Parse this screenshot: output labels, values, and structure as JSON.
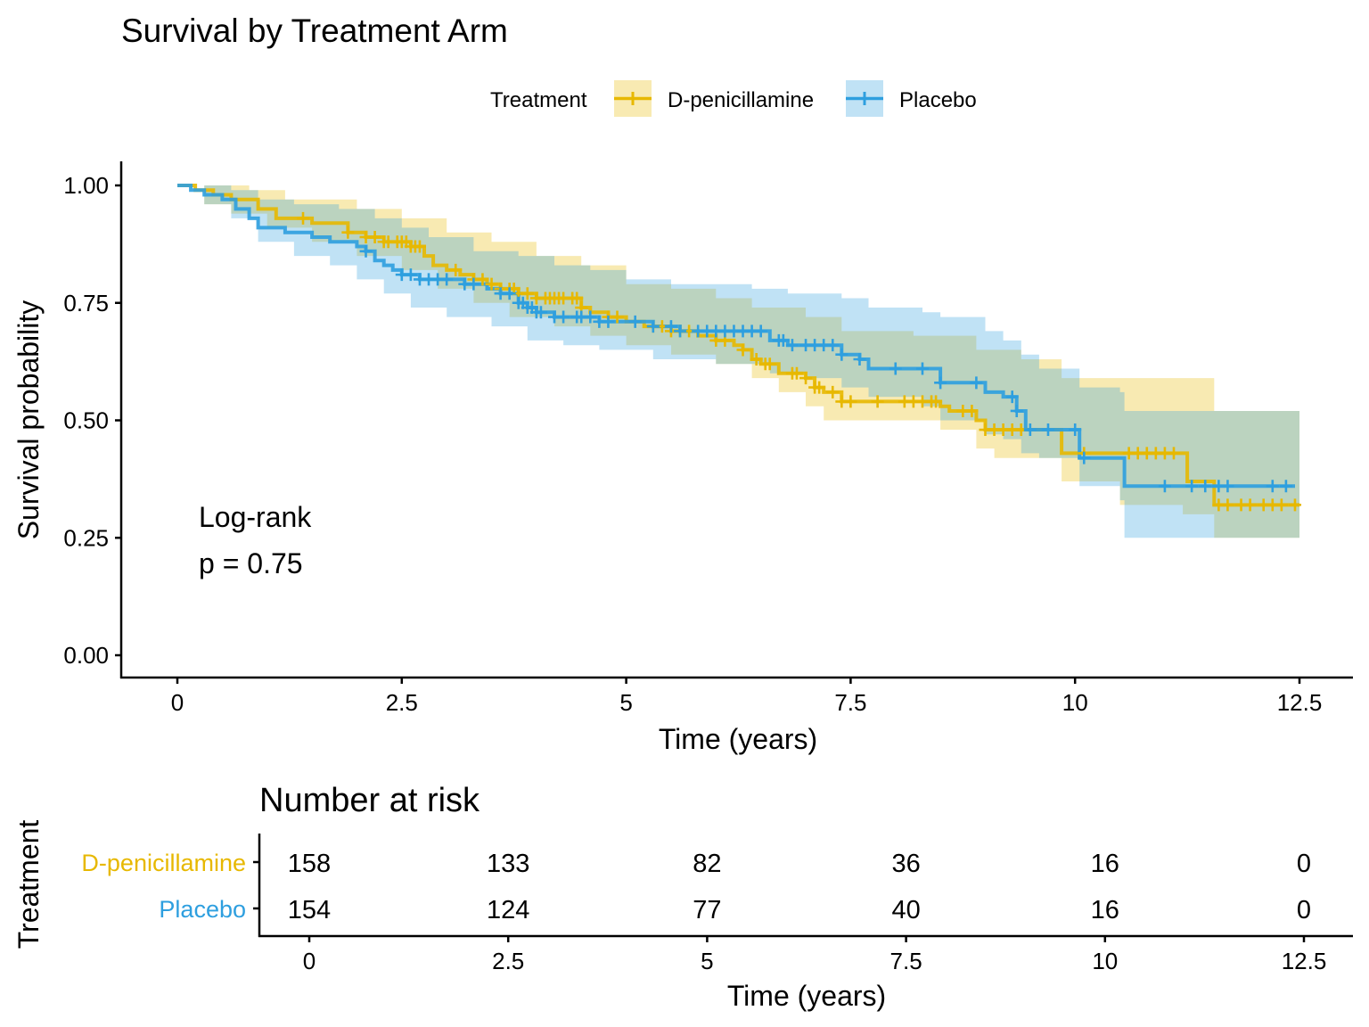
{
  "chart_data": {
    "type": "line",
    "title": "Survival by Treatment Arm",
    "xlabel": "Time (years)",
    "ylabel": "Survival probability",
    "xlim": [
      0,
      12.5
    ],
    "ylim": [
      0,
      1
    ],
    "x_ticks": [
      "0",
      "2.5",
      "5",
      "7.5",
      "10",
      "12.5"
    ],
    "y_ticks": [
      "0.00",
      "0.25",
      "0.50",
      "0.75",
      "1.00"
    ],
    "grid": false,
    "legend": {
      "title": "Treatment",
      "position": "top",
      "entries": [
        "D-penicillamine",
        "Placebo"
      ]
    },
    "annotation": {
      "line1": "Log-rank",
      "line2": "p = 0.75"
    },
    "series": [
      {
        "name": "D-penicillamine",
        "color": "#E7B800",
        "curve": [
          [
            0,
            1.0
          ],
          [
            0.2,
            0.99
          ],
          [
            0.4,
            0.98
          ],
          [
            0.6,
            0.97
          ],
          [
            0.9,
            0.95
          ],
          [
            1.1,
            0.93
          ],
          [
            1.5,
            0.92
          ],
          [
            1.9,
            0.9
          ],
          [
            2.1,
            0.89
          ],
          [
            2.3,
            0.88
          ],
          [
            2.6,
            0.87
          ],
          [
            2.75,
            0.85
          ],
          [
            2.85,
            0.83
          ],
          [
            3.0,
            0.82
          ],
          [
            3.15,
            0.81
          ],
          [
            3.3,
            0.8
          ],
          [
            3.45,
            0.79
          ],
          [
            3.6,
            0.78
          ],
          [
            3.8,
            0.77
          ],
          [
            4.0,
            0.76
          ],
          [
            4.3,
            0.76
          ],
          [
            4.5,
            0.74
          ],
          [
            4.6,
            0.73
          ],
          [
            4.8,
            0.72
          ],
          [
            5.0,
            0.71
          ],
          [
            5.2,
            0.7
          ],
          [
            5.5,
            0.69
          ],
          [
            5.8,
            0.68
          ],
          [
            6.0,
            0.67
          ],
          [
            6.2,
            0.66
          ],
          [
            6.3,
            0.65
          ],
          [
            6.4,
            0.63
          ],
          [
            6.5,
            0.62
          ],
          [
            6.7,
            0.6
          ],
          [
            7.0,
            0.59
          ],
          [
            7.1,
            0.57
          ],
          [
            7.2,
            0.56
          ],
          [
            7.4,
            0.54
          ],
          [
            8.2,
            0.54
          ],
          [
            8.5,
            0.53
          ],
          [
            8.6,
            0.52
          ],
          [
            8.9,
            0.5
          ],
          [
            9.0,
            0.48
          ],
          [
            9.4,
            0.48
          ],
          [
            9.8,
            0.48
          ],
          [
            9.85,
            0.43
          ],
          [
            11.2,
            0.43
          ],
          [
            11.25,
            0.37
          ],
          [
            11.5,
            0.37
          ],
          [
            11.55,
            0.32
          ],
          [
            12.5,
            0.32
          ]
        ],
        "lower": [
          [
            0,
            1.0
          ],
          [
            0.3,
            0.96
          ],
          [
            0.6,
            0.94
          ],
          [
            1.0,
            0.91
          ],
          [
            1.5,
            0.88
          ],
          [
            2.0,
            0.85
          ],
          [
            2.5,
            0.82
          ],
          [
            2.9,
            0.78
          ],
          [
            3.3,
            0.75
          ],
          [
            3.7,
            0.72
          ],
          [
            4.2,
            0.7
          ],
          [
            4.6,
            0.68
          ],
          [
            5.0,
            0.66
          ],
          [
            5.5,
            0.64
          ],
          [
            6.0,
            0.62
          ],
          [
            6.4,
            0.59
          ],
          [
            6.7,
            0.56
          ],
          [
            7.0,
            0.53
          ],
          [
            7.2,
            0.5
          ],
          [
            7.5,
            0.5
          ],
          [
            8.5,
            0.48
          ],
          [
            8.9,
            0.44
          ],
          [
            9.1,
            0.42
          ],
          [
            9.85,
            0.37
          ],
          [
            10.5,
            0.32
          ],
          [
            11.2,
            0.3
          ],
          [
            11.55,
            0.25
          ],
          [
            12.5,
            0.2
          ]
        ],
        "upper": [
          [
            0,
            1.0
          ],
          [
            0.5,
            1.0
          ],
          [
            0.8,
            0.99
          ],
          [
            1.2,
            0.97
          ],
          [
            1.5,
            0.97
          ],
          [
            2.0,
            0.95
          ],
          [
            2.5,
            0.93
          ],
          [
            3.0,
            0.9
          ],
          [
            3.5,
            0.88
          ],
          [
            4.0,
            0.85
          ],
          [
            4.5,
            0.83
          ],
          [
            5.0,
            0.79
          ],
          [
            5.5,
            0.78
          ],
          [
            6.0,
            0.76
          ],
          [
            6.4,
            0.74
          ],
          [
            7.0,
            0.72
          ],
          [
            7.4,
            0.69
          ],
          [
            8.2,
            0.68
          ],
          [
            8.9,
            0.65
          ],
          [
            9.4,
            0.63
          ],
          [
            9.85,
            0.59
          ],
          [
            11.2,
            0.59
          ],
          [
            11.55,
            0.52
          ],
          [
            12.5,
            0.52
          ]
        ],
        "censor": [
          1.4,
          1.9,
          2.1,
          2.2,
          2.3,
          2.35,
          2.45,
          2.5,
          2.55,
          2.6,
          2.65,
          2.7,
          3.1,
          3.3,
          3.4,
          3.5,
          3.6,
          3.7,
          3.75,
          3.8,
          3.9,
          4.0,
          4.1,
          4.15,
          4.2,
          4.25,
          4.3,
          4.4,
          4.45,
          4.5,
          4.8,
          4.9,
          5.3,
          5.4,
          5.5,
          5.6,
          5.7,
          6.0,
          6.1,
          6.3,
          6.45,
          6.55,
          6.6,
          6.85,
          6.9,
          7.0,
          7.1,
          7.15,
          7.3,
          7.4,
          7.5,
          7.8,
          8.1,
          8.2,
          8.3,
          8.4,
          8.45,
          8.75,
          8.85,
          9.0,
          9.1,
          9.2,
          9.3,
          9.4,
          10.1,
          10.6,
          10.7,
          10.8,
          10.9,
          11.0,
          11.1,
          11.6,
          11.7,
          11.85,
          11.95,
          12.1,
          12.2,
          12.3,
          12.45
        ]
      },
      {
        "name": "Placebo",
        "color": "#2E9FDF",
        "curve": [
          [
            0,
            1.0
          ],
          [
            0.15,
            0.99
          ],
          [
            0.3,
            0.98
          ],
          [
            0.5,
            0.97
          ],
          [
            0.65,
            0.95
          ],
          [
            0.8,
            0.93
          ],
          [
            0.9,
            0.91
          ],
          [
            1.2,
            0.9
          ],
          [
            1.5,
            0.89
          ],
          [
            1.7,
            0.88
          ],
          [
            2.0,
            0.87
          ],
          [
            2.1,
            0.86
          ],
          [
            2.2,
            0.84
          ],
          [
            2.3,
            0.83
          ],
          [
            2.4,
            0.82
          ],
          [
            2.5,
            0.81
          ],
          [
            2.7,
            0.8
          ],
          [
            3.2,
            0.79
          ],
          [
            3.45,
            0.78
          ],
          [
            3.6,
            0.77
          ],
          [
            3.8,
            0.75
          ],
          [
            3.9,
            0.74
          ],
          [
            4.0,
            0.73
          ],
          [
            4.2,
            0.72
          ],
          [
            4.6,
            0.72
          ],
          [
            4.7,
            0.71
          ],
          [
            5.3,
            0.7
          ],
          [
            5.6,
            0.69
          ],
          [
            6.4,
            0.69
          ],
          [
            6.6,
            0.67
          ],
          [
            6.8,
            0.66
          ],
          [
            7.4,
            0.64
          ],
          [
            7.6,
            0.63
          ],
          [
            7.7,
            0.61
          ],
          [
            8.3,
            0.61
          ],
          [
            8.5,
            0.58
          ],
          [
            9.0,
            0.56
          ],
          [
            9.2,
            0.55
          ],
          [
            9.35,
            0.52
          ],
          [
            9.45,
            0.48
          ],
          [
            9.6,
            0.48
          ],
          [
            10.0,
            0.48
          ],
          [
            10.05,
            0.42
          ],
          [
            10.5,
            0.42
          ],
          [
            10.55,
            0.36
          ],
          [
            12.45,
            0.36
          ]
        ],
        "lower": [
          [
            0,
            1.0
          ],
          [
            0.3,
            0.96
          ],
          [
            0.6,
            0.93
          ],
          [
            0.9,
            0.88
          ],
          [
            1.3,
            0.85
          ],
          [
            1.7,
            0.83
          ],
          [
            2.0,
            0.8
          ],
          [
            2.3,
            0.77
          ],
          [
            2.6,
            0.74
          ],
          [
            3.0,
            0.72
          ],
          [
            3.5,
            0.7
          ],
          [
            3.9,
            0.67
          ],
          [
            4.3,
            0.66
          ],
          [
            4.7,
            0.65
          ],
          [
            5.3,
            0.63
          ],
          [
            6.0,
            0.62
          ],
          [
            6.6,
            0.6
          ],
          [
            7.0,
            0.59
          ],
          [
            7.4,
            0.57
          ],
          [
            7.7,
            0.55
          ],
          [
            8.3,
            0.53
          ],
          [
            8.5,
            0.5
          ],
          [
            9.0,
            0.47
          ],
          [
            9.2,
            0.46
          ],
          [
            9.4,
            0.43
          ],
          [
            9.6,
            0.42
          ],
          [
            10.05,
            0.36
          ],
          [
            10.5,
            0.33
          ],
          [
            10.55,
            0.25
          ],
          [
            12.5,
            0.25
          ]
        ],
        "upper": [
          [
            0,
            1.0
          ],
          [
            0.3,
            1.0
          ],
          [
            0.6,
            0.99
          ],
          [
            0.9,
            0.97
          ],
          [
            1.3,
            0.96
          ],
          [
            1.8,
            0.95
          ],
          [
            2.2,
            0.93
          ],
          [
            2.5,
            0.91
          ],
          [
            2.8,
            0.89
          ],
          [
            3.3,
            0.86
          ],
          [
            3.8,
            0.85
          ],
          [
            4.2,
            0.83
          ],
          [
            4.6,
            0.82
          ],
          [
            5.0,
            0.8
          ],
          [
            5.5,
            0.79
          ],
          [
            6.4,
            0.78
          ],
          [
            6.8,
            0.77
          ],
          [
            7.4,
            0.76
          ],
          [
            7.7,
            0.74
          ],
          [
            8.3,
            0.73
          ],
          [
            8.5,
            0.72
          ],
          [
            9.0,
            0.69
          ],
          [
            9.2,
            0.67
          ],
          [
            9.4,
            0.64
          ],
          [
            9.6,
            0.61
          ],
          [
            10.05,
            0.57
          ],
          [
            10.5,
            0.56
          ],
          [
            10.55,
            0.52
          ],
          [
            12.5,
            0.52
          ]
        ],
        "censor": [
          2.1,
          2.5,
          2.6,
          2.7,
          2.8,
          2.9,
          3.0,
          3.2,
          3.3,
          3.6,
          3.7,
          3.8,
          3.85,
          3.9,
          3.95,
          4.0,
          4.05,
          4.2,
          4.3,
          4.45,
          4.5,
          4.6,
          4.7,
          4.8,
          5.1,
          5.3,
          5.5,
          5.6,
          5.8,
          5.9,
          6.0,
          6.1,
          6.2,
          6.3,
          6.4,
          6.5,
          6.7,
          6.75,
          6.85,
          7.0,
          7.1,
          7.2,
          7.3,
          7.4,
          7.6,
          8.0,
          8.3,
          8.5,
          8.9,
          9.3,
          9.35,
          9.5,
          9.7,
          10.0,
          10.1,
          11.0,
          11.3,
          11.45,
          11.6,
          11.7,
          12.2,
          12.35
        ]
      }
    ],
    "risk_table": {
      "title": "Number at risk",
      "ylabel": "Treatment",
      "xlabel": "Time (years)",
      "times": [
        "0",
        "2.5",
        "5",
        "7.5",
        "10",
        "12.5"
      ],
      "rows": [
        {
          "name": "D-penicillamine",
          "color": "#E7B800",
          "values": [
            "158",
            "133",
            "82",
            "36",
            "16",
            "0"
          ]
        },
        {
          "name": "Placebo",
          "color": "#2E9FDF",
          "values": [
            "154",
            "124",
            "77",
            "40",
            "16",
            "0"
          ]
        }
      ]
    }
  }
}
